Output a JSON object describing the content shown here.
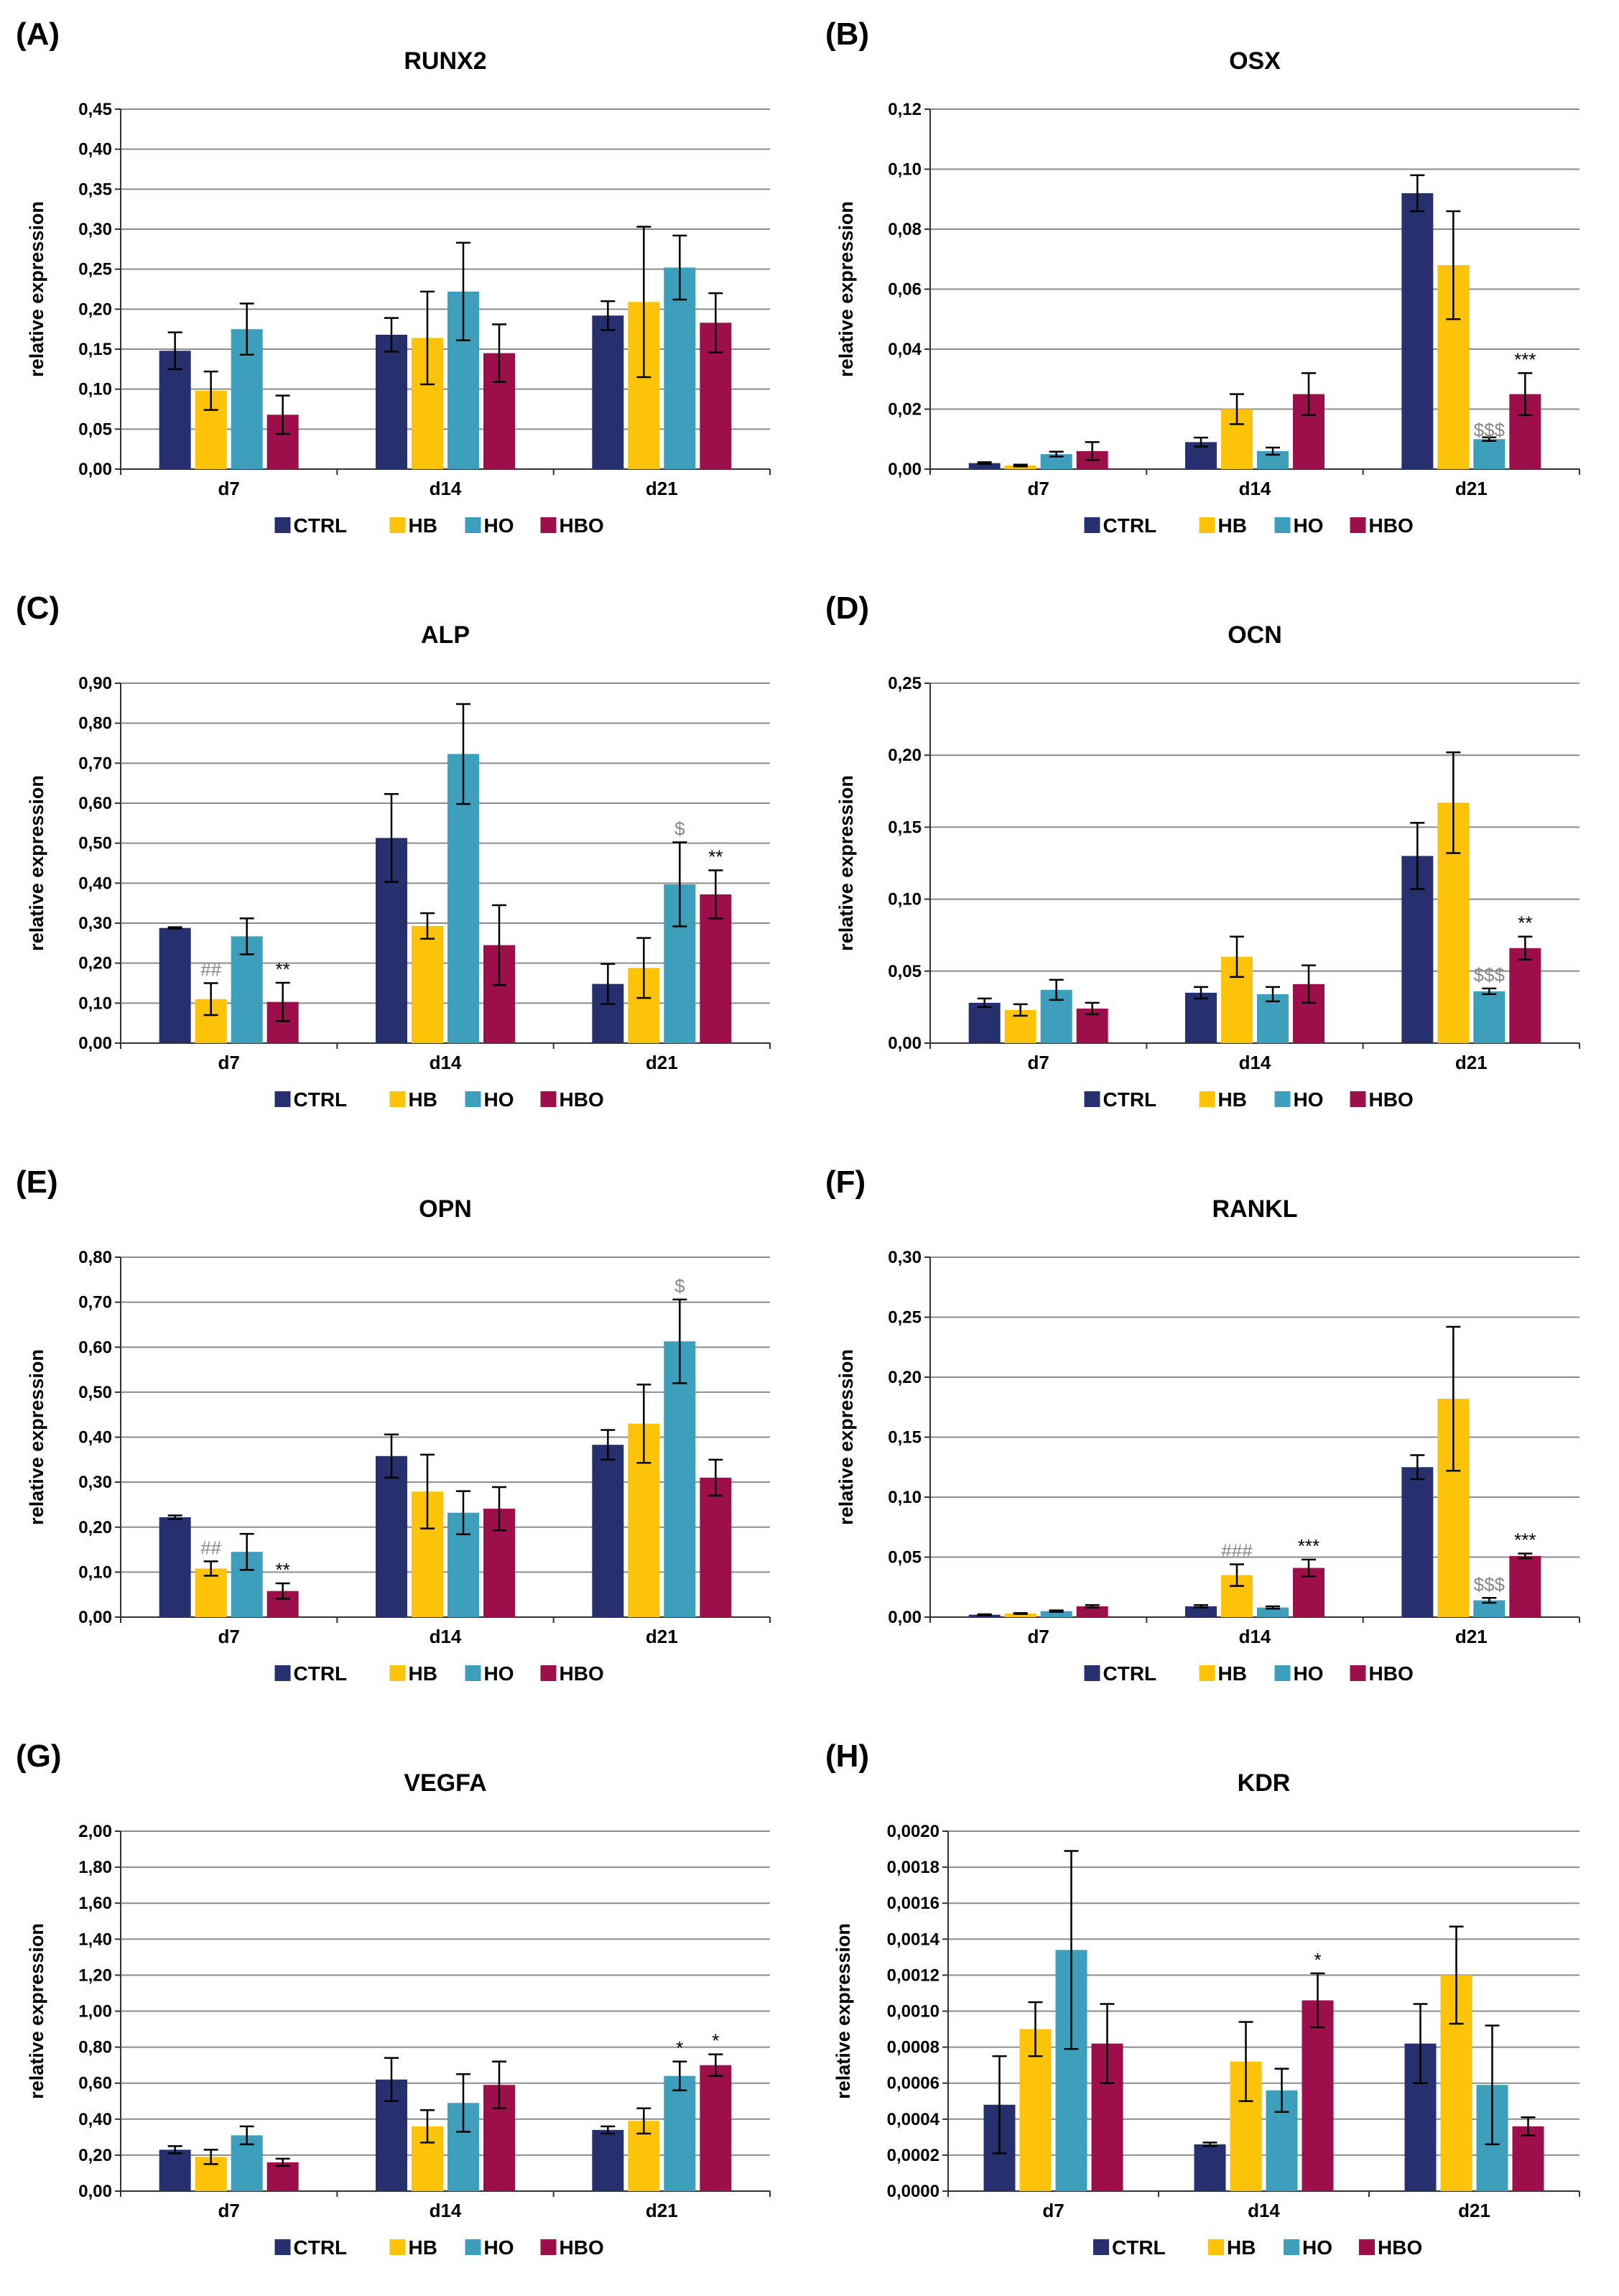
{
  "colors": {
    "CTRL": "#26306e",
    "HB": "#fcc308",
    "HO": "#3e9fbd",
    "HBO": "#9c0f4b"
  },
  "legend": [
    "CTRL",
    "HB",
    "HO",
    "HBO"
  ],
  "chart_data": [
    {
      "panel": "(A)",
      "title": "RUNX2",
      "type": "bar",
      "ylabel": "relative expression",
      "categories": [
        "d7",
        "d14",
        "d21"
      ],
      "ylim": [
        0,
        0.45
      ],
      "yticks": [
        "0,00",
        "0,05",
        "0,10",
        "0,15",
        "0,20",
        "0,25",
        "0,30",
        "0,35",
        "0,40",
        "0,45"
      ],
      "series": [
        {
          "name": "CTRL",
          "values": [
            0.148,
            0.168,
            0.192
          ],
          "errors": [
            0.023,
            0.021,
            0.018
          ]
        },
        {
          "name": "HB",
          "values": [
            0.098,
            0.164,
            0.209
          ],
          "errors": [
            0.024,
            0.058,
            0.094
          ]
        },
        {
          "name": "HO",
          "values": [
            0.175,
            0.222,
            0.252
          ],
          "errors": [
            0.032,
            0.061,
            0.04
          ]
        },
        {
          "name": "HBO",
          "values": [
            0.068,
            0.145,
            0.183
          ],
          "errors": [
            0.024,
            0.036,
            0.037
          ]
        }
      ],
      "annotations": []
    },
    {
      "panel": "(B)",
      "title": "OSX",
      "type": "bar",
      "ylabel": "relative expression",
      "categories": [
        "d7",
        "d14",
        "d21"
      ],
      "ylim": [
        0,
        0.12
      ],
      "yticks": [
        "0,00",
        "0,02",
        "0,04",
        "0,06",
        "0,08",
        "0,10",
        "0,12"
      ],
      "series": [
        {
          "name": "CTRL",
          "values": [
            0.002,
            0.009,
            0.092
          ],
          "errors": [
            0.0003,
            0.0015,
            0.006
          ]
        },
        {
          "name": "HB",
          "values": [
            0.0012,
            0.02,
            0.068
          ],
          "errors": [
            0.0003,
            0.005,
            0.018
          ]
        },
        {
          "name": "HO",
          "values": [
            0.005,
            0.006,
            0.01
          ],
          "errors": [
            0.0008,
            0.0012,
            0.0006
          ]
        },
        {
          "name": "HBO",
          "values": [
            0.006,
            0.025,
            0.025
          ],
          "errors": [
            0.003,
            0.007,
            0.007
          ]
        }
      ],
      "annotations": [
        {
          "text": "$$$",
          "category": 2,
          "series": 2,
          "color": "#888888",
          "inside": true
        },
        {
          "text": "***",
          "category": 2,
          "series": 3
        }
      ]
    },
    {
      "panel": "(C)",
      "title": "ALP",
      "type": "bar",
      "ylabel": "relative expression",
      "categories": [
        "d7",
        "d14",
        "d21"
      ],
      "ylim": [
        0,
        0.9
      ],
      "yticks": [
        "0,00",
        "0,10",
        "0,20",
        "0,30",
        "0,40",
        "0,50",
        "0,60",
        "0,70",
        "0,80",
        "0,90"
      ],
      "series": [
        {
          "name": "CTRL",
          "values": [
            0.288,
            0.513,
            0.148
          ],
          "errors": [
            0.002,
            0.11,
            0.05
          ]
        },
        {
          "name": "HB",
          "values": [
            0.11,
            0.293,
            0.188
          ],
          "errors": [
            0.04,
            0.032,
            0.075
          ]
        },
        {
          "name": "HO",
          "values": [
            0.267,
            0.723,
            0.397
          ],
          "errors": [
            0.045,
            0.125,
            0.105
          ]
        },
        {
          "name": "HBO",
          "values": [
            0.103,
            0.245,
            0.372
          ],
          "errors": [
            0.048,
            0.1,
            0.06
          ]
        }
      ],
      "annotations": [
        {
          "text": "##",
          "category": 0,
          "series": 1,
          "color": "#888888"
        },
        {
          "text": "**",
          "category": 0,
          "series": 3
        },
        {
          "text": "$",
          "category": 2,
          "series": 2,
          "color": "#888888"
        },
        {
          "text": "**",
          "category": 2,
          "series": 3
        }
      ]
    },
    {
      "panel": "(D)",
      "title": "OCN",
      "type": "bar",
      "ylabel": "relative expression",
      "categories": [
        "d7",
        "d14",
        "d21"
      ],
      "ylim": [
        0,
        0.25
      ],
      "yticks": [
        "0,00",
        "0,05",
        "0,10",
        "0,15",
        "0,20",
        "0,25"
      ],
      "series": [
        {
          "name": "CTRL",
          "values": [
            0.028,
            0.035,
            0.13
          ],
          "errors": [
            0.003,
            0.004,
            0.023
          ]
        },
        {
          "name": "HB",
          "values": [
            0.023,
            0.06,
            0.167
          ],
          "errors": [
            0.004,
            0.014,
            0.035
          ]
        },
        {
          "name": "HO",
          "values": [
            0.037,
            0.034,
            0.036
          ],
          "errors": [
            0.007,
            0.005,
            0.002
          ]
        },
        {
          "name": "HBO",
          "values": [
            0.024,
            0.041,
            0.066
          ],
          "errors": [
            0.004,
            0.013,
            0.008
          ]
        }
      ],
      "annotations": [
        {
          "text": "$$$",
          "category": 2,
          "series": 2,
          "color": "#888888"
        },
        {
          "text": "**",
          "category": 2,
          "series": 3
        }
      ]
    },
    {
      "panel": "(E)",
      "title": "OPN",
      "type": "bar",
      "ylabel": "relative expression",
      "categories": [
        "d7",
        "d14",
        "d21"
      ],
      "ylim": [
        0,
        0.8
      ],
      "yticks": [
        "0,00",
        "0,10",
        "0,20",
        "0,30",
        "0,40",
        "0,50",
        "0,60",
        "0,70",
        "0,80"
      ],
      "series": [
        {
          "name": "CTRL",
          "values": [
            0.222,
            0.358,
            0.383
          ],
          "errors": [
            0.004,
            0.048,
            0.033
          ]
        },
        {
          "name": "HB",
          "values": [
            0.108,
            0.279,
            0.43
          ],
          "errors": [
            0.016,
            0.082,
            0.087
          ]
        },
        {
          "name": "HO",
          "values": [
            0.145,
            0.232,
            0.613
          ],
          "errors": [
            0.04,
            0.048,
            0.093
          ]
        },
        {
          "name": "HBO",
          "values": [
            0.058,
            0.241,
            0.31
          ],
          "errors": [
            0.017,
            0.048,
            0.04
          ]
        }
      ],
      "annotations": [
        {
          "text": "##",
          "category": 0,
          "series": 1,
          "color": "#888888"
        },
        {
          "text": "**",
          "category": 0,
          "series": 3
        },
        {
          "text": "$",
          "category": 2,
          "series": 2,
          "color": "#888888"
        }
      ]
    },
    {
      "panel": "(F)",
      "title": "RANKL",
      "type": "bar",
      "ylabel": "relative expression",
      "categories": [
        "d7",
        "d14",
        "d21"
      ],
      "ylim": [
        0,
        0.3
      ],
      "yticks": [
        "0,00",
        "0,05",
        "0,10",
        "0,15",
        "0,20",
        "0,25",
        "0,30"
      ],
      "series": [
        {
          "name": "CTRL",
          "values": [
            0.002,
            0.009,
            0.125
          ],
          "errors": [
            0.0004,
            0.001,
            0.01
          ]
        },
        {
          "name": "HB",
          "values": [
            0.003,
            0.035,
            0.182
          ],
          "errors": [
            0.0004,
            0.009,
            0.06
          ]
        },
        {
          "name": "HO",
          "values": [
            0.005,
            0.008,
            0.014
          ],
          "errors": [
            0.0006,
            0.001,
            0.002
          ]
        },
        {
          "name": "HBO",
          "values": [
            0.009,
            0.041,
            0.051
          ],
          "errors": [
            0.001,
            0.007,
            0.002
          ]
        }
      ],
      "annotations": [
        {
          "text": "###",
          "category": 1,
          "series": 1,
          "color": "#888888"
        },
        {
          "text": "***",
          "category": 1,
          "series": 3
        },
        {
          "text": "$$$",
          "category": 2,
          "series": 2,
          "color": "#888888"
        },
        {
          "text": "***",
          "category": 2,
          "series": 3
        }
      ]
    },
    {
      "panel": "(G)",
      "title": "VEGFA",
      "type": "bar",
      "ylabel": "relative expression",
      "categories": [
        "d7",
        "d14",
        "d21"
      ],
      "ylim": [
        0,
        2.0
      ],
      "yticks": [
        "0,00",
        "0,20",
        "0,40",
        "0,60",
        "0,80",
        "1,00",
        "1,20",
        "1,40",
        "1,60",
        "1,80",
        "2,00"
      ],
      "series": [
        {
          "name": "CTRL",
          "values": [
            0.23,
            0.62,
            0.34
          ],
          "errors": [
            0.02,
            0.12,
            0.02
          ]
        },
        {
          "name": "HB",
          "values": [
            0.19,
            0.36,
            0.39
          ],
          "errors": [
            0.04,
            0.09,
            0.07
          ]
        },
        {
          "name": "HO",
          "values": [
            0.31,
            0.49,
            0.64
          ],
          "errors": [
            0.05,
            0.16,
            0.08
          ]
        },
        {
          "name": "HBO",
          "values": [
            0.16,
            0.59,
            0.7
          ],
          "errors": [
            0.02,
            0.13,
            0.06
          ]
        }
      ],
      "annotations": [
        {
          "text": "*",
          "category": 2,
          "series": 2
        },
        {
          "text": "*",
          "category": 2,
          "series": 3
        }
      ]
    },
    {
      "panel": "(H)",
      "title": "KDR",
      "type": "bar",
      "ylabel": "relative expression",
      "categories": [
        "d7",
        "d14",
        "d21"
      ],
      "ylim": [
        0,
        0.002
      ],
      "yticks": [
        "0,0000",
        "0,0002",
        "0,0004",
        "0,0006",
        "0,0008",
        "0,0010",
        "0,0012",
        "0,0014",
        "0,0016",
        "0,0018",
        "0,0020"
      ],
      "series": [
        {
          "name": "CTRL",
          "values": [
            0.00048,
            0.00026,
            0.00082
          ],
          "errors": [
            0.00027,
            1e-05,
            0.00022
          ]
        },
        {
          "name": "HB",
          "values": [
            0.0009,
            0.00072,
            0.0012
          ],
          "errors": [
            0.00015,
            0.00022,
            0.00027
          ]
        },
        {
          "name": "HO",
          "values": [
            0.00134,
            0.00056,
            0.00059
          ],
          "errors": [
            0.00055,
            0.00012,
            0.00033
          ]
        },
        {
          "name": "HBO",
          "values": [
            0.00082,
            0.00106,
            0.00036
          ],
          "errors": [
            0.00022,
            0.00015,
            5e-05
          ]
        }
      ],
      "annotations": [
        {
          "text": "*",
          "category": 1,
          "series": 3
        }
      ]
    }
  ]
}
